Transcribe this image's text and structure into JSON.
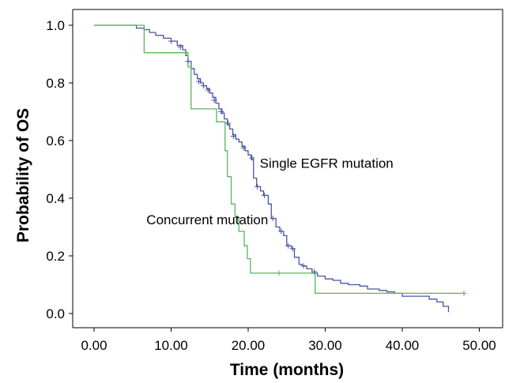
{
  "chart_data": {
    "type": "line",
    "xlabel": "Time (months)",
    "ylabel": "Probability of OS",
    "xlim": [
      0,
      50
    ],
    "ylim": [
      0,
      1.0
    ],
    "x_ticks": [
      "0.00",
      "10.00",
      "20.00",
      "30.00",
      "40.00",
      "50.00"
    ],
    "y_ticks": [
      "0.0",
      "0.2",
      "0.4",
      "0.6",
      "0.8",
      "1.0"
    ],
    "grid": false,
    "legend": "none",
    "annotations": [
      {
        "text": "Single EGFR mutation",
        "x": 21.5,
        "y": 0.505
      },
      {
        "text": "Concurrent mutation",
        "x": 6.8,
        "y": 0.31
      }
    ],
    "series": [
      {
        "color": "#4a55a2",
        "label_ref": "Single EGFR mutation",
        "points": [
          [
            0,
            1.0
          ],
          [
            5.0,
            1.0
          ],
          [
            5.5,
            0.99
          ],
          [
            6.5,
            0.985
          ],
          [
            7.2,
            0.975
          ],
          [
            8.0,
            0.965
          ],
          [
            9.0,
            0.955
          ],
          [
            10.0,
            0.945
          ],
          [
            10.8,
            0.93
          ],
          [
            11.5,
            0.915
          ],
          [
            11.9,
            0.895
          ],
          [
            12.2,
            0.875
          ],
          [
            12.6,
            0.85
          ],
          [
            13.0,
            0.83
          ],
          [
            13.4,
            0.815
          ],
          [
            13.8,
            0.8
          ],
          [
            14.2,
            0.79
          ],
          [
            14.6,
            0.78
          ],
          [
            15.0,
            0.765
          ],
          [
            15.4,
            0.75
          ],
          [
            15.8,
            0.73
          ],
          [
            16.2,
            0.71
          ],
          [
            16.6,
            0.695
          ],
          [
            16.9,
            0.675
          ],
          [
            17.3,
            0.655
          ],
          [
            17.6,
            0.64
          ],
          [
            18.0,
            0.62
          ],
          [
            18.4,
            0.605
          ],
          [
            18.8,
            0.595
          ],
          [
            19.2,
            0.58
          ],
          [
            19.6,
            0.565
          ],
          [
            20.0,
            0.55
          ],
          [
            20.4,
            0.535
          ],
          [
            20.7,
            0.47
          ],
          [
            21.1,
            0.44
          ],
          [
            21.6,
            0.425
          ],
          [
            22.0,
            0.41
          ],
          [
            22.6,
            0.38
          ],
          [
            23.0,
            0.33
          ],
          [
            23.6,
            0.3
          ],
          [
            24.1,
            0.285
          ],
          [
            24.6,
            0.27
          ],
          [
            25.0,
            0.235
          ],
          [
            25.6,
            0.225
          ],
          [
            26.0,
            0.195
          ],
          [
            26.6,
            0.17
          ],
          [
            27.0,
            0.165
          ],
          [
            27.6,
            0.155
          ],
          [
            28.3,
            0.14
          ],
          [
            29.0,
            0.13
          ],
          [
            30.0,
            0.12
          ],
          [
            31.0,
            0.115
          ],
          [
            32.0,
            0.105
          ],
          [
            33.0,
            0.1
          ],
          [
            34.5,
            0.095
          ],
          [
            35.5,
            0.085
          ],
          [
            37.0,
            0.08
          ],
          [
            38.0,
            0.075
          ],
          [
            39.0,
            0.07
          ],
          [
            40.0,
            0.06
          ],
          [
            43.5,
            0.05
          ],
          [
            44.5,
            0.04
          ],
          [
            45.3,
            0.025
          ],
          [
            46.0,
            0.005
          ]
        ]
      },
      {
        "color": "#5ab55a",
        "label_ref": "Concurrent mutation",
        "points": [
          [
            0,
            1.0
          ],
          [
            6.5,
            1.0
          ],
          [
            6.5,
            0.905
          ],
          [
            12.2,
            0.905
          ],
          [
            12.2,
            0.855
          ],
          [
            12.6,
            0.855
          ],
          [
            12.6,
            0.71
          ],
          [
            15.9,
            0.71
          ],
          [
            15.9,
            0.665
          ],
          [
            17.0,
            0.665
          ],
          [
            17.0,
            0.565
          ],
          [
            17.3,
            0.565
          ],
          [
            17.3,
            0.475
          ],
          [
            17.8,
            0.475
          ],
          [
            17.8,
            0.38
          ],
          [
            18.3,
            0.38
          ],
          [
            18.3,
            0.335
          ],
          [
            18.8,
            0.335
          ],
          [
            18.8,
            0.285
          ],
          [
            19.5,
            0.285
          ],
          [
            19.5,
            0.235
          ],
          [
            19.9,
            0.235
          ],
          [
            19.9,
            0.19
          ],
          [
            20.3,
            0.19
          ],
          [
            20.3,
            0.14
          ],
          [
            28.7,
            0.14
          ],
          [
            28.7,
            0.07
          ],
          [
            48.0,
            0.07
          ]
        ]
      }
    ],
    "censor_marks": {
      "Single EGFR mutation": [
        [
          10.0,
          0.945
        ],
        [
          11.2,
          0.925
        ],
        [
          12.2,
          0.875
        ],
        [
          13.6,
          0.805
        ],
        [
          14.2,
          0.79
        ],
        [
          14.8,
          0.775
        ],
        [
          15.6,
          0.74
        ],
        [
          16.5,
          0.7
        ],
        [
          17.4,
          0.66
        ],
        [
          18.1,
          0.615
        ],
        [
          19.4,
          0.575
        ],
        [
          20.5,
          0.54
        ],
        [
          21.2,
          0.44
        ],
        [
          22.1,
          0.41
        ],
        [
          23.2,
          0.33
        ],
        [
          24.3,
          0.285
        ],
        [
          25.2,
          0.235
        ],
        [
          25.8,
          0.225
        ],
        [
          27.2,
          0.165
        ],
        [
          28.6,
          0.145
        ]
      ],
      "Concurrent mutation": [
        [
          24.0,
          0.14
        ],
        [
          48.0,
          0.07
        ]
      ]
    }
  }
}
